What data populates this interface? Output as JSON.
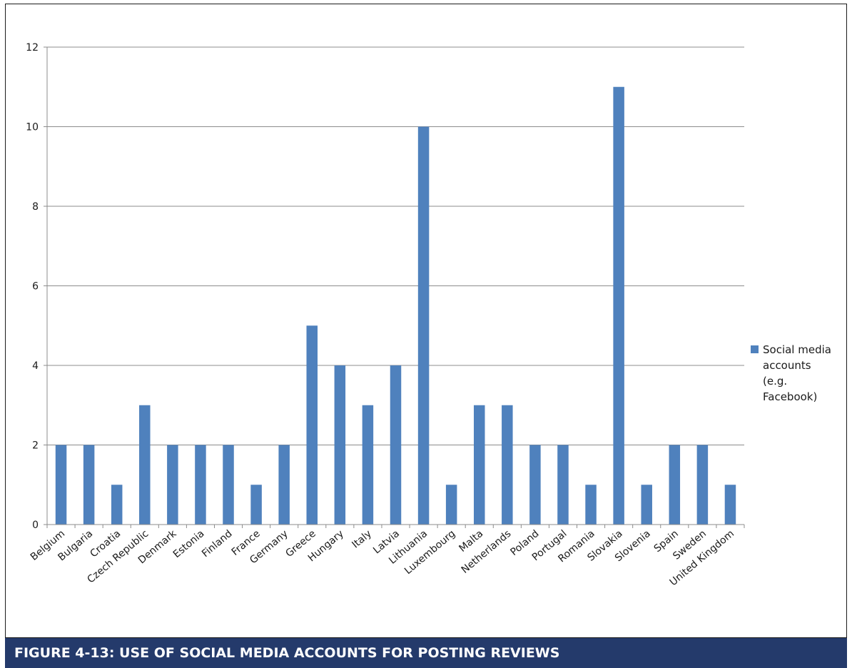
{
  "caption": "FIGURE 4-13:  USE OF SOCIAL MEDIA ACCOUNTS FOR POSTING REVIEWS",
  "chart_data": {
    "type": "bar",
    "categories": [
      "Belgium",
      "Bulgaria",
      "Croatia",
      "Czech Republic",
      "Denmark",
      "Estonia",
      "Finland",
      "France",
      "Germany",
      "Greece",
      "Hungary",
      "Italy",
      "Latvia",
      "Lithuania",
      "Luxembourg",
      "Malta",
      "Netherlands",
      "Poland",
      "Portugal",
      "Romania",
      "Slovakia",
      "Slovenia",
      "Spain",
      "Sweden",
      "United Kingdom"
    ],
    "series": [
      {
        "name": "Social media accounts (e.g. Facebook)",
        "legend_lines": [
          "Social media",
          "accounts",
          "(e.g.",
          "Facebook)"
        ],
        "color": "#4f81bd",
        "values": [
          2,
          2,
          1,
          3,
          2,
          2,
          2,
          1,
          2,
          5,
          4,
          3,
          4,
          10,
          1,
          3,
          3,
          2,
          2,
          1,
          11,
          1,
          2,
          2,
          1
        ]
      }
    ],
    "ylim": [
      0,
      12
    ],
    "yticks": [
      0,
      2,
      4,
      6,
      8,
      10,
      12
    ],
    "grid": true,
    "legend_position": "right",
    "gridline_color": "#8c8c8c"
  }
}
